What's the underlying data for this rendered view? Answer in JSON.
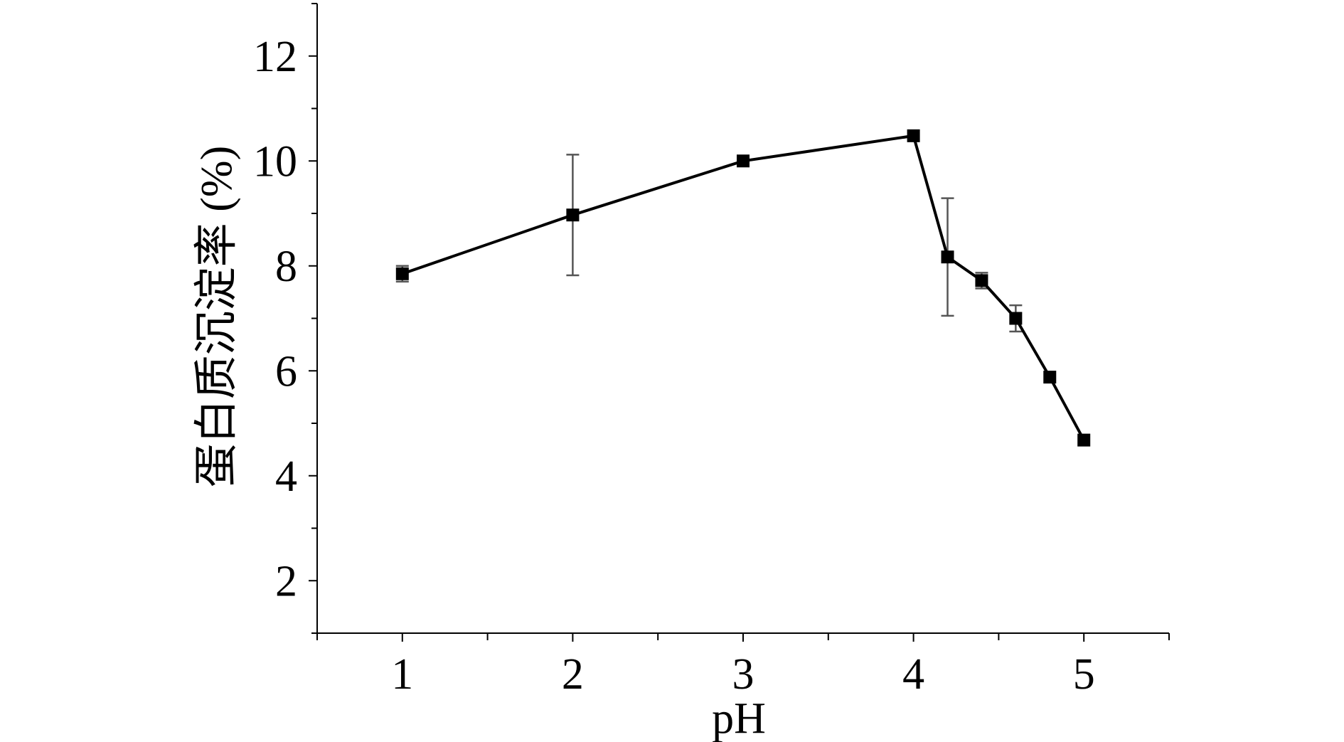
{
  "chart_data": {
    "type": "line",
    "xlabel": "pH",
    "ylabel": "蛋白质沉淀率 (%)",
    "xlim": [
      0.5,
      5.5
    ],
    "ylim": [
      1.0,
      13.0
    ],
    "xticks": [
      1,
      2,
      3,
      4,
      5
    ],
    "xtick_labels": [
      "1",
      "2",
      "3",
      "4",
      "5"
    ],
    "yticks": [
      2,
      4,
      6,
      8,
      10,
      12
    ],
    "ytick_labels": [
      "2",
      "4",
      "6",
      "8",
      "10",
      "12"
    ],
    "grid": false,
    "series": [
      {
        "color": "#000000",
        "marker": "square",
        "points": [
          {
            "x": 1.0,
            "y": 7.85,
            "err": 0.15
          },
          {
            "x": 2.0,
            "y": 8.97,
            "err": 1.15
          },
          {
            "x": 3.0,
            "y": 10.0,
            "err": 0.0
          },
          {
            "x": 4.0,
            "y": 10.48,
            "err": 0.0
          },
          {
            "x": 4.2,
            "y": 8.17,
            "err": 1.12
          },
          {
            "x": 4.4,
            "y": 7.72,
            "err": 0.15
          },
          {
            "x": 4.6,
            "y": 7.0,
            "err": 0.25
          },
          {
            "x": 4.8,
            "y": 5.88,
            "err": 0.0
          },
          {
            "x": 5.0,
            "y": 4.68,
            "err": 0.0
          }
        ]
      }
    ]
  }
}
